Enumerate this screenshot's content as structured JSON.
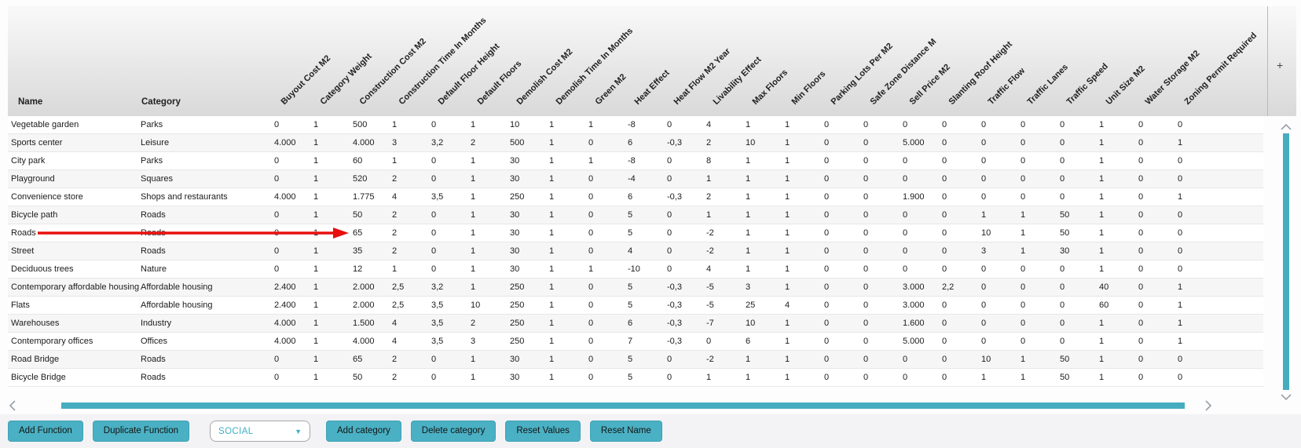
{
  "table": {
    "fixed_columns": [
      "Name",
      "Category"
    ],
    "value_columns": [
      "Buyout Cost M2",
      "Category Weight",
      "Construction Cost M2",
      "Construction Time In Months",
      "Default Floor Height",
      "Default Floors",
      "Demolish Cost M2",
      "Demolish Time In Months",
      "Green M2",
      "Heat Effect",
      "Heat Flow M2 Year",
      "Livability Effect",
      "Max Floors",
      "Min Floors",
      "Parking Lots Per M2",
      "Safe Zone Distance M",
      "Sell Price M2",
      "Slanting Roof Height",
      "Traffic Flow",
      "Traffic Lanes",
      "Traffic Speed",
      "Unit Size M2",
      "Water Storage M2",
      "Zoning Permit Required"
    ],
    "add_column_label": "+",
    "rows": [
      {
        "name": "Vegetable garden",
        "category": "Parks",
        "values": [
          "0",
          "1",
          "500",
          "1",
          "0",
          "1",
          "10",
          "1",
          "1",
          "-8",
          "0",
          "4",
          "1",
          "1",
          "0",
          "0",
          "0",
          "0",
          "0",
          "0",
          "0",
          "1",
          "0",
          "0"
        ]
      },
      {
        "name": "Sports center",
        "category": "Leisure",
        "values": [
          "4.000",
          "1",
          "4.000",
          "3",
          "3,2",
          "2",
          "500",
          "1",
          "0",
          "6",
          "-0,3",
          "2",
          "10",
          "1",
          "0",
          "0",
          "5.000",
          "0",
          "0",
          "0",
          "0",
          "1",
          "0",
          "1"
        ]
      },
      {
        "name": "City park",
        "category": "Parks",
        "values": [
          "0",
          "1",
          "60",
          "1",
          "0",
          "1",
          "30",
          "1",
          "1",
          "-8",
          "0",
          "8",
          "1",
          "1",
          "0",
          "0",
          "0",
          "0",
          "0",
          "0",
          "0",
          "1",
          "0",
          "0"
        ]
      },
      {
        "name": "Playground",
        "category": "Squares",
        "values": [
          "0",
          "1",
          "520",
          "2",
          "0",
          "1",
          "30",
          "1",
          "0",
          "-4",
          "0",
          "1",
          "1",
          "1",
          "0",
          "0",
          "0",
          "0",
          "0",
          "0",
          "0",
          "1",
          "0",
          "0"
        ]
      },
      {
        "name": "Convenience store",
        "category": "Shops and restaurants",
        "values": [
          "4.000",
          "1",
          "1.775",
          "4",
          "3,5",
          "1",
          "250",
          "1",
          "0",
          "6",
          "-0,3",
          "2",
          "1",
          "1",
          "0",
          "0",
          "1.900",
          "0",
          "0",
          "0",
          "0",
          "1",
          "0",
          "1"
        ]
      },
      {
        "name": "Bicycle path",
        "category": "Roads",
        "values": [
          "0",
          "1",
          "50",
          "2",
          "0",
          "1",
          "30",
          "1",
          "0",
          "5",
          "0",
          "1",
          "1",
          "1",
          "0",
          "0",
          "0",
          "0",
          "1",
          "1",
          "50",
          "1",
          "0",
          "0"
        ]
      },
      {
        "name": "Roads",
        "category": "Roads",
        "values": [
          "0",
          "1",
          "65",
          "2",
          "0",
          "1",
          "30",
          "1",
          "0",
          "5",
          "0",
          "-2",
          "1",
          "1",
          "0",
          "0",
          "0",
          "0",
          "10",
          "1",
          "50",
          "1",
          "0",
          "0"
        ]
      },
      {
        "name": "Street",
        "category": "Roads",
        "values": [
          "0",
          "1",
          "35",
          "2",
          "0",
          "1",
          "30",
          "1",
          "0",
          "4",
          "0",
          "-2",
          "1",
          "1",
          "0",
          "0",
          "0",
          "0",
          "3",
          "1",
          "30",
          "1",
          "0",
          "0"
        ]
      },
      {
        "name": "Deciduous trees",
        "category": "Nature",
        "values": [
          "0",
          "1",
          "12",
          "1",
          "0",
          "1",
          "30",
          "1",
          "1",
          "-10",
          "0",
          "4",
          "1",
          "1",
          "0",
          "0",
          "0",
          "0",
          "0",
          "0",
          "0",
          "1",
          "0",
          "0"
        ]
      },
      {
        "name": "Contemporary affordable housing",
        "category": "Affordable housing",
        "values": [
          "2.400",
          "1",
          "2.000",
          "2,5",
          "3,2",
          "1",
          "250",
          "1",
          "0",
          "5",
          "-0,3",
          "-5",
          "3",
          "1",
          "0",
          "0",
          "3.000",
          "2,2",
          "0",
          "0",
          "0",
          "40",
          "0",
          "1"
        ]
      },
      {
        "name": "Flats",
        "category": "Affordable housing",
        "values": [
          "2.400",
          "1",
          "2.000",
          "2,5",
          "3,5",
          "10",
          "250",
          "1",
          "0",
          "5",
          "-0,3",
          "-5",
          "25",
          "4",
          "0",
          "0",
          "3.000",
          "0",
          "0",
          "0",
          "0",
          "60",
          "0",
          "1"
        ]
      },
      {
        "name": "Warehouses",
        "category": "Industry",
        "values": [
          "4.000",
          "1",
          "1.500",
          "4",
          "3,5",
          "2",
          "250",
          "1",
          "0",
          "6",
          "-0,3",
          "-7",
          "10",
          "1",
          "0",
          "0",
          "1.600",
          "0",
          "0",
          "0",
          "0",
          "1",
          "0",
          "1"
        ]
      },
      {
        "name": "Contemporary offices",
        "category": "Offices",
        "values": [
          "4.000",
          "1",
          "4.000",
          "4",
          "3,5",
          "3",
          "250",
          "1",
          "0",
          "7",
          "-0,3",
          "0",
          "6",
          "1",
          "0",
          "0",
          "5.000",
          "0",
          "0",
          "0",
          "0",
          "1",
          "0",
          "1"
        ]
      },
      {
        "name": "Road Bridge",
        "category": "Roads",
        "values": [
          "0",
          "1",
          "65",
          "2",
          "0",
          "1",
          "30",
          "1",
          "0",
          "5",
          "0",
          "-2",
          "1",
          "1",
          "0",
          "0",
          "0",
          "0",
          "10",
          "1",
          "50",
          "1",
          "0",
          "0"
        ]
      },
      {
        "name": "Bicycle Bridge",
        "category": "Roads",
        "values": [
          "0",
          "1",
          "50",
          "2",
          "0",
          "1",
          "30",
          "1",
          "0",
          "5",
          "0",
          "1",
          "1",
          "1",
          "0",
          "0",
          "0",
          "0",
          "1",
          "1",
          "50",
          "1",
          "0",
          "0"
        ]
      }
    ]
  },
  "annotation": {
    "type": "red-arrow",
    "target_row": "Roads",
    "color": "#e8100c"
  },
  "toolbar": {
    "add_function": "Add Function",
    "duplicate_function": "Duplicate Function",
    "category_dropdown_value": "SOCIAL",
    "add_category": "Add category",
    "delete_category": "Delete category",
    "reset_values": "Reset Values",
    "reset_name": "Reset Name"
  },
  "colors": {
    "accent_teal": "#4ab0c3",
    "scrollbar_teal": "#46adbf",
    "arrow_red": "#e8100c"
  }
}
